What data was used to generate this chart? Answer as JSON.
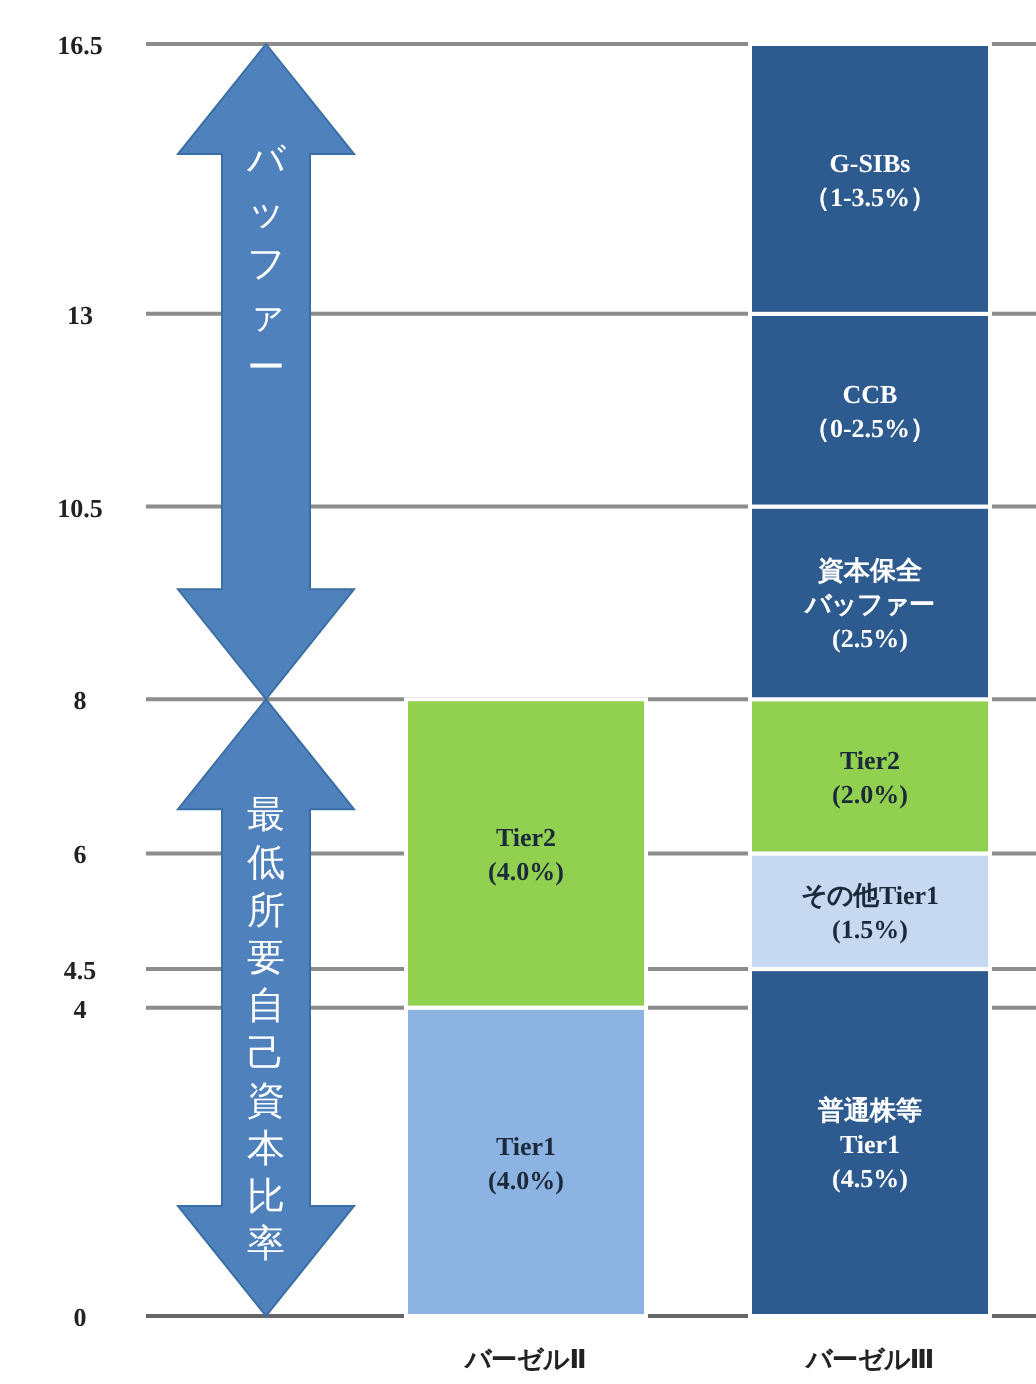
{
  "chart_data": {
    "type": "bar",
    "stacked": true,
    "categories": [
      "バーゼルⅡ",
      "バーゼルⅢ"
    ],
    "series": [
      {
        "colors": [
          "#8db3e2",
          "#2e5b8f"
        ],
        "values": [
          4.0,
          4.5
        ],
        "value_labels": [
          "Tier1\n(4.0%)",
          "普通株等\nTier1\n(4.5%)"
        ]
      },
      {
        "colors": [
          "#92d050",
          "#c6d9f1"
        ],
        "values": [
          4.0,
          1.5
        ],
        "value_labels": [
          "Tier2\n(4.0%)",
          "その他Tier1\n(1.5%)"
        ]
      },
      {
        "colors": [
          null,
          "#92d050"
        ],
        "values": [
          null,
          2.0
        ],
        "value_labels": [
          null,
          "Tier2\n(2.0%)"
        ]
      },
      {
        "colors": [
          null,
          "#2e5b8f"
        ],
        "values": [
          null,
          2.5
        ],
        "value_labels": [
          null,
          "資本保全バッファー\n(2.5%)"
        ]
      },
      {
        "colors": [
          null,
          "#2e5b8f"
        ],
        "values": [
          null,
          2.5
        ]
      },
      {
        "colors": [
          null,
          "#2e5b8f"
        ],
        "values": [
          null,
          3.5
        ]
      }
    ],
    "ylim": [
      0,
      16.5
    ],
    "yticks": [
      0,
      4,
      4.5,
      6,
      8,
      10.5,
      13,
      16.5
    ],
    "grid": "y",
    "annotations": [
      "最低所要自己資本比率",
      "バッファー",
      "CCB\n（0-2.5%）",
      "G-SIBs\n（1-3.5%）"
    ]
  }
}
